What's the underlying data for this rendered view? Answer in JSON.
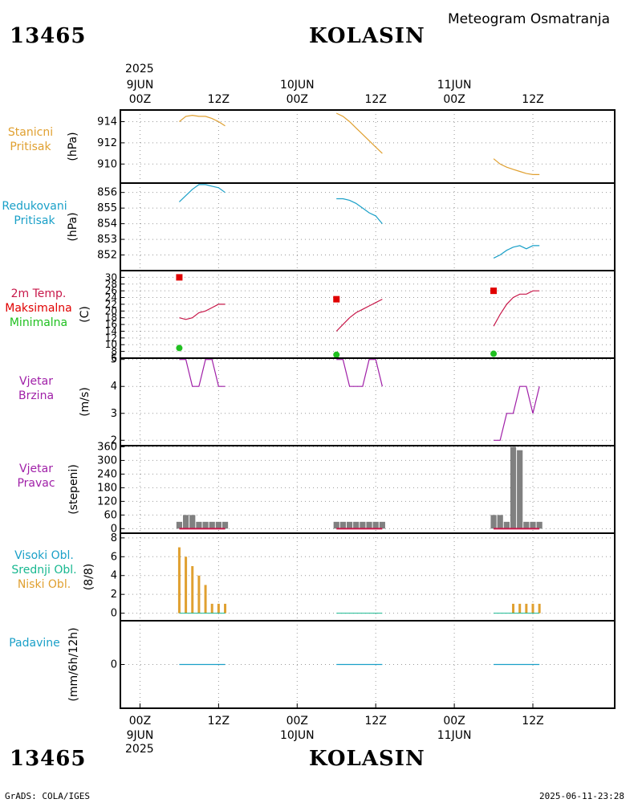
{
  "header": {
    "station_id": "13465",
    "station_name": "KOLASIN",
    "product": "Meteogram Osmatranja"
  },
  "footer": {
    "station_id": "13465",
    "station_name": "KOLASIN",
    "software": "GrADS: COLA/IGES",
    "timestamp": "2025-06-11-23:28"
  },
  "time_axis": {
    "top_year": "2025",
    "bottom_year": "2025",
    "ticks": [
      {
        "hours": 0,
        "time": "00Z",
        "date": "9JUN"
      },
      {
        "hours": 12,
        "time": "12Z",
        "date": ""
      },
      {
        "hours": 24,
        "time": "00Z",
        "date": "10JUN"
      },
      {
        "hours": 36,
        "time": "12Z",
        "date": ""
      },
      {
        "hours": 48,
        "time": "00Z",
        "date": "11JUN"
      },
      {
        "hours": 60,
        "time": "12Z",
        "date": ""
      }
    ]
  },
  "panels": {
    "pressure": {
      "label1": "Stanicni",
      "label2": "Pritisak",
      "unit": "(hPa)",
      "color1": "#e0a030"
    },
    "reduced": {
      "label1": "Redukovani",
      "label2": "Pritisak",
      "unit": "(hPa)",
      "color1": "#1aa0c8"
    },
    "temp": {
      "label1": "2m Temp.",
      "label2": "Maksimalna",
      "label3": "Minimalna",
      "unit": "(C)",
      "color1": "#c8184a",
      "color2": "#e00000",
      "color3": "#20c020"
    },
    "wind_speed": {
      "label1": "Vjetar",
      "label2": "Brzina",
      "unit": "(m/s)",
      "color1": "#a020a8"
    },
    "wind_dir": {
      "label1": "Vjetar",
      "label2": "Pravac",
      "unit": "(stepeni)",
      "color1": "#a020a8"
    },
    "clouds": {
      "label1": "Visoki Obl.",
      "label2": "Srednji Obl.",
      "label3": "Niski Obl.",
      "unit": "(8/8)",
      "color1": "#1aa0c8",
      "color2": "#18b890",
      "color3": "#e0a030"
    },
    "precip": {
      "label1": "Padavine",
      "unit": "(mm/6h/12h)",
      "color1": "#1aa0c8"
    }
  },
  "chart_data": [
    {
      "type": "line",
      "name": "pressure",
      "ylabel": "(hPa)",
      "ylim": [
        908.2,
        915.1
      ],
      "yticks": [
        910,
        912,
        914
      ],
      "series": [
        {
          "name": "Stanicni Pritisak",
          "color": "#e0a030",
          "segments": [
            [
              [
                6,
                914.0
              ],
              [
                7,
                914.5
              ],
              [
                8,
                914.6
              ],
              [
                9,
                914.5
              ],
              [
                10,
                914.5
              ],
              [
                11,
                914.3
              ],
              [
                12,
                914.0
              ],
              [
                13,
                913.6
              ]
            ],
            [
              [
                30,
                914.8
              ],
              [
                31,
                914.5
              ],
              [
                32,
                914.0
              ],
              [
                33,
                913.4
              ],
              [
                34,
                912.8
              ],
              [
                35,
                912.2
              ],
              [
                36,
                911.6
              ],
              [
                37,
                911.0
              ]
            ],
            [
              [
                54,
                910.5
              ],
              [
                55,
                910.0
              ],
              [
                56,
                909.7
              ],
              [
                57,
                909.5
              ],
              [
                58,
                909.3
              ],
              [
                59,
                909.1
              ],
              [
                60,
                909.0
              ],
              [
                61,
                909.0
              ]
            ]
          ]
        }
      ]
    },
    {
      "type": "line",
      "name": "reduced",
      "ylabel": "(hPa)",
      "ylim": [
        851.0,
        856.6
      ],
      "yticks": [
        852,
        853,
        854,
        855,
        856
      ],
      "series": [
        {
          "name": "Redukovani Pritisak",
          "color": "#1aa0c8",
          "segments": [
            [
              [
                6,
                855.4
              ],
              [
                7,
                855.8
              ],
              [
                8,
                856.2
              ],
              [
                9,
                856.5
              ],
              [
                10,
                856.5
              ],
              [
                11,
                856.4
              ],
              [
                12,
                856.3
              ],
              [
                13,
                856.0
              ]
            ],
            [
              [
                30,
                855.6
              ],
              [
                31,
                855.6
              ],
              [
                32,
                855.5
              ],
              [
                33,
                855.3
              ],
              [
                34,
                855.0
              ],
              [
                35,
                854.7
              ],
              [
                36,
                854.5
              ],
              [
                37,
                854.0
              ]
            ],
            [
              [
                54,
                851.8
              ],
              [
                55,
                852.0
              ],
              [
                56,
                852.3
              ],
              [
                57,
                852.5
              ],
              [
                58,
                852.6
              ],
              [
                59,
                852.4
              ],
              [
                60,
                852.6
              ],
              [
                61,
                852.6
              ]
            ]
          ]
        }
      ]
    },
    {
      "type": "line",
      "name": "temp",
      "ylabel": "(C)",
      "ylim": [
        6,
        32
      ],
      "yticks": [
        6,
        8,
        10,
        12,
        14,
        16,
        18,
        20,
        22,
        24,
        26,
        28,
        30
      ],
      "series": [
        {
          "name": "2m Temp.",
          "color": "#c8184a",
          "segments": [
            [
              [
                6,
                18
              ],
              [
                7,
                17.5
              ],
              [
                8,
                18
              ],
              [
                9,
                19.5
              ],
              [
                10,
                20
              ],
              [
                11,
                21
              ],
              [
                12,
                22
              ],
              [
                13,
                22
              ]
            ],
            [
              [
                30,
                14
              ],
              [
                31,
                16
              ],
              [
                32,
                18
              ],
              [
                33,
                19.5
              ],
              [
                34,
                20.5
              ],
              [
                35,
                21.5
              ],
              [
                36,
                22.5
              ],
              [
                37,
                23.5
              ]
            ],
            [
              [
                54,
                15.5
              ],
              [
                55,
                19
              ],
              [
                56,
                22
              ],
              [
                57,
                24
              ],
              [
                58,
                25
              ],
              [
                59,
                25
              ],
              [
                60,
                26
              ],
              [
                61,
                26
              ]
            ]
          ]
        },
        {
          "name": "Maksimalna",
          "color": "#e00000",
          "marker": "square",
          "points": [
            [
              6,
              30
            ],
            [
              30,
              23.5
            ],
            [
              54,
              26
            ]
          ]
        },
        {
          "name": "Minimalna",
          "color": "#20c020",
          "marker": "circle",
          "points": [
            [
              6,
              9
            ],
            [
              30,
              7
            ],
            [
              54,
              7.3
            ]
          ]
        }
      ]
    },
    {
      "type": "line",
      "name": "wind_speed",
      "ylabel": "(m/s)",
      "ylim": [
        1.8,
        5.05
      ],
      "yticks": [
        2,
        3,
        4,
        5
      ],
      "series": [
        {
          "name": "Vjetar Brzina",
          "color": "#a020a8",
          "segments": [
            [
              [
                6,
                5
              ],
              [
                7,
                5
              ],
              [
                8,
                4
              ],
              [
                9,
                4
              ],
              [
                10,
                5
              ],
              [
                11,
                5
              ],
              [
                12,
                4
              ],
              [
                13,
                4
              ]
            ],
            [
              [
                30,
                5
              ],
              [
                31,
                5
              ],
              [
                32,
                4
              ],
              [
                33,
                4
              ],
              [
                34,
                4
              ],
              [
                35,
                5
              ],
              [
                36,
                5
              ],
              [
                37,
                4
              ]
            ],
            [
              [
                54,
                2
              ],
              [
                55,
                2
              ],
              [
                56,
                3
              ],
              [
                57,
                3
              ],
              [
                58,
                4
              ],
              [
                59,
                4
              ],
              [
                60,
                3
              ],
              [
                61,
                4
              ]
            ]
          ]
        }
      ]
    },
    {
      "type": "bar",
      "name": "wind_dir",
      "ylabel": "(stepeni)",
      "ylim": [
        -20,
        365
      ],
      "yticks": [
        0,
        60,
        120,
        180,
        240,
        300,
        360
      ],
      "x": [
        6,
        7,
        8,
        9,
        10,
        11,
        12,
        13,
        30,
        31,
        32,
        33,
        34,
        35,
        36,
        37,
        54,
        55,
        56,
        57,
        58,
        59,
        60,
        61
      ],
      "values": [
        30,
        60,
        60,
        30,
        30,
        30,
        30,
        30,
        30,
        30,
        30,
        30,
        30,
        30,
        30,
        30,
        60,
        60,
        30,
        360,
        345,
        30,
        30,
        30
      ],
      "color": "#808080",
      "base_color": "#c8184a"
    },
    {
      "type": "bar",
      "name": "clouds",
      "ylabel": "(8/8)",
      "ylim": [
        -0.8,
        8.5
      ],
      "yticks": [
        0,
        2,
        4,
        6,
        8
      ],
      "x": [
        6,
        7,
        8,
        9,
        10,
        11,
        12,
        13,
        30,
        31,
        32,
        33,
        34,
        35,
        36,
        37,
        54,
        55,
        56,
        57,
        58,
        59,
        60,
        61
      ],
      "low_values": [
        7,
        6,
        5,
        4,
        3,
        1,
        1,
        1,
        0,
        0,
        0,
        0,
        0,
        0,
        0,
        0,
        0,
        0,
        0,
        1,
        1,
        1,
        1,
        1
      ],
      "mid_values": [
        0,
        0,
        0,
        0,
        0,
        0,
        0,
        0,
        0,
        0,
        0,
        0,
        0,
        0,
        0,
        0,
        0,
        0,
        0,
        0,
        0,
        0,
        0,
        0
      ],
      "high_values": [
        0,
        0,
        0,
        0,
        0,
        0,
        0,
        0,
        0,
        0,
        0,
        0,
        0,
        0,
        0,
        0,
        0,
        0,
        0,
        0,
        0,
        0,
        0,
        0
      ],
      "color": "#e0a030"
    },
    {
      "type": "line",
      "name": "precip",
      "ylabel": "(mm/6h/12h)",
      "ylim": [
        -1,
        1
      ],
      "yticks": [
        0
      ],
      "series": [
        {
          "name": "Padavine",
          "color": "#1aa0c8",
          "segments": [
            [
              [
                6,
                0
              ],
              [
                13,
                0
              ]
            ],
            [
              [
                30,
                0
              ],
              [
                37,
                0
              ]
            ],
            [
              [
                54,
                0
              ],
              [
                61,
                0
              ]
            ]
          ]
        }
      ]
    }
  ]
}
